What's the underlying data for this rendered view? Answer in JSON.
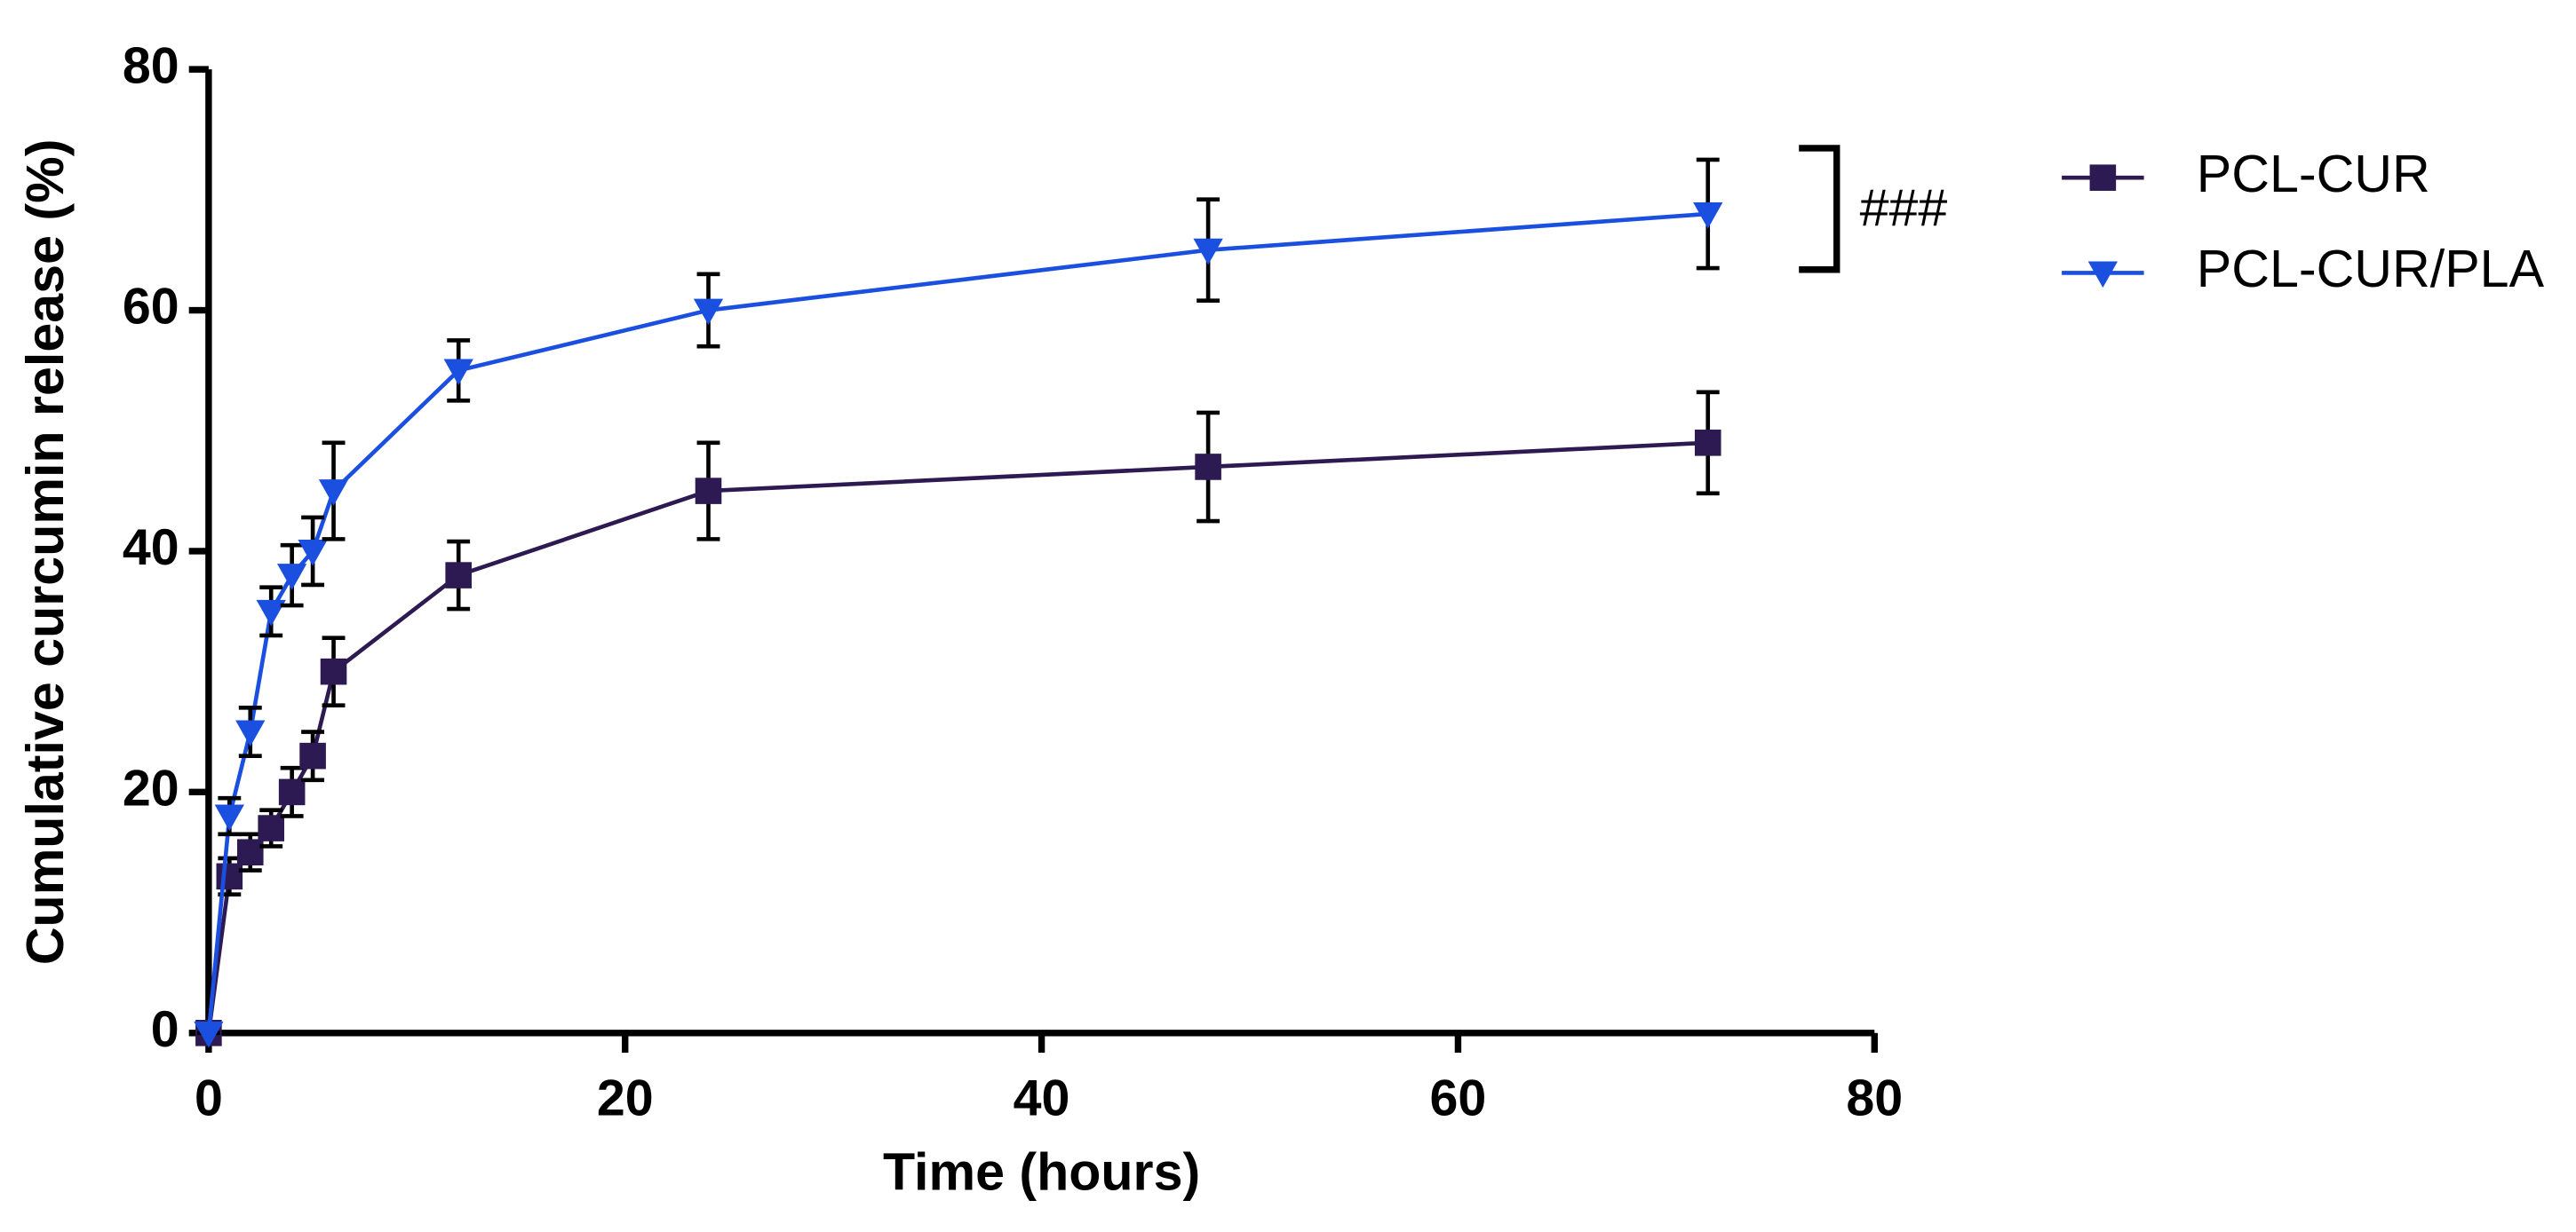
{
  "chart_data": {
    "type": "line",
    "xlabel": "Time (hours)",
    "ylabel": "Cumulative curcumin release (%)",
    "x": [
      0,
      1,
      2,
      3,
      4,
      5,
      6,
      12,
      24,
      48,
      72
    ],
    "series": [
      {
        "name": "PCL-CUR",
        "color": "#2e1a52",
        "marker": "square",
        "values": [
          0,
          13,
          15,
          17,
          20,
          23,
          30,
          38,
          45,
          47,
          49
        ],
        "errors": [
          0,
          1.5,
          1.5,
          1.5,
          2,
          2,
          2.8,
          2.8,
          4,
          4.5,
          4.2
        ]
      },
      {
        "name": "PCL-CUR/PLA",
        "color": "#1a4fe0",
        "marker": "triangle-down",
        "values": [
          0,
          18,
          25,
          35,
          38,
          40,
          45,
          55,
          60,
          65,
          68
        ],
        "errors": [
          0,
          1.5,
          2,
          2,
          2.5,
          2.8,
          4,
          2.5,
          3,
          4.2,
          4.5
        ]
      }
    ],
    "xlim": [
      0,
      80
    ],
    "xticks": [
      0,
      20,
      40,
      60,
      80
    ],
    "ylim": [
      0,
      80
    ],
    "yticks": [
      0,
      20,
      40,
      60,
      80
    ],
    "annotation": "###",
    "legend": "upper-right",
    "grid": false
  }
}
